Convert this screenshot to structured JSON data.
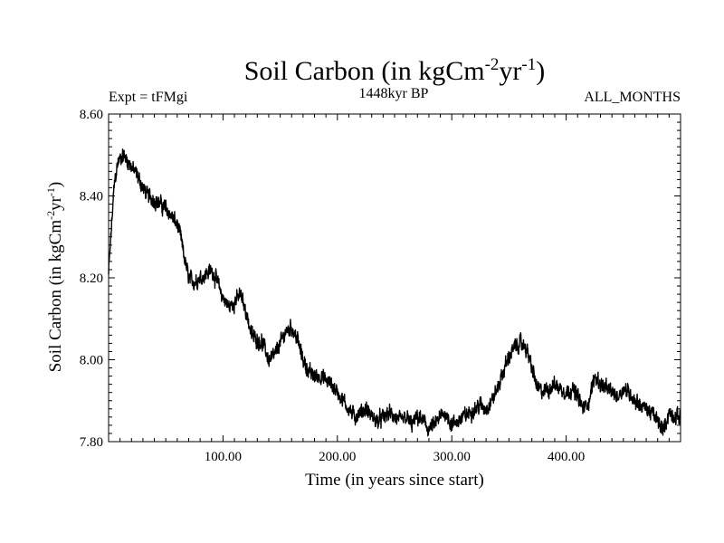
{
  "chart_data": {
    "type": "line",
    "title": "Soil Carbon (in kgCm",
    "title_sup1": "-2",
    "title_mid": "yr",
    "title_sup2": "-1",
    "title_end": ")",
    "subtitle_left": "Expt = tFMgi",
    "subtitle_center": "1448kyr BP",
    "subtitle_right": "ALL_MONTHS",
    "xlabel": "Time (in years since start)",
    "ylabel": "Soil Carbon (in kgCm",
    "ylabel_sup1": "-2",
    "ylabel_mid": "yr",
    "ylabel_sup2": "-1",
    "ylabel_end": ")",
    "xlim": [
      0,
      500
    ],
    "ylim": [
      7.8,
      8.6
    ],
    "x_ticks": [
      {
        "value": 100,
        "label": "100.00"
      },
      {
        "value": 200,
        "label": "200.00"
      },
      {
        "value": 300,
        "label": "300.00"
      },
      {
        "value": 400,
        "label": "400.00"
      }
    ],
    "y_ticks": [
      {
        "value": 7.8,
        "label": "7.80"
      },
      {
        "value": 8.0,
        "label": "8.00"
      },
      {
        "value": 8.2,
        "label": "8.20"
      },
      {
        "value": 8.4,
        "label": "8.40"
      },
      {
        "value": 8.6,
        "label": "8.60"
      }
    ],
    "series": [
      {
        "name": "Soil Carbon",
        "color": "#000000",
        "noise_amplitude": 0.012,
        "x": [
          0,
          2,
          5,
          8,
          12,
          16,
          20,
          25,
          30,
          35,
          40,
          45,
          50,
          55,
          60,
          63,
          66,
          70,
          75,
          80,
          85,
          90,
          95,
          100,
          105,
          110,
          115,
          120,
          125,
          130,
          135,
          140,
          145,
          150,
          155,
          160,
          165,
          170,
          175,
          180,
          185,
          190,
          195,
          200,
          205,
          210,
          215,
          220,
          225,
          230,
          235,
          240,
          245,
          250,
          255,
          260,
          265,
          270,
          275,
          280,
          285,
          290,
          295,
          300,
          305,
          310,
          315,
          320,
          325,
          330,
          335,
          340,
          345,
          350,
          355,
          360,
          365,
          370,
          375,
          380,
          385,
          390,
          395,
          400,
          405,
          410,
          415,
          420,
          425,
          430,
          435,
          440,
          445,
          450,
          455,
          460,
          465,
          470,
          475,
          480,
          485,
          490,
          495,
          500
        ],
        "y": [
          8.21,
          8.3,
          8.43,
          8.48,
          8.5,
          8.49,
          8.47,
          8.45,
          8.42,
          8.4,
          8.39,
          8.38,
          8.37,
          8.35,
          8.33,
          8.3,
          8.25,
          8.2,
          8.19,
          8.2,
          8.21,
          8.22,
          8.19,
          8.15,
          8.13,
          8.14,
          8.16,
          8.12,
          8.06,
          8.05,
          8.04,
          8.0,
          8.01,
          8.04,
          8.07,
          8.08,
          8.05,
          8.0,
          7.97,
          7.96,
          7.96,
          7.95,
          7.94,
          7.92,
          7.9,
          7.88,
          7.86,
          7.87,
          7.88,
          7.86,
          7.85,
          7.86,
          7.87,
          7.86,
          7.85,
          7.86,
          7.84,
          7.86,
          7.85,
          7.83,
          7.84,
          7.86,
          7.87,
          7.84,
          7.85,
          7.86,
          7.87,
          7.88,
          7.89,
          7.88,
          7.9,
          7.93,
          7.97,
          8.01,
          8.03,
          8.04,
          8.03,
          7.98,
          7.93,
          7.92,
          7.93,
          7.94,
          7.93,
          7.92,
          7.93,
          7.91,
          7.88,
          7.9,
          7.96,
          7.94,
          7.93,
          7.92,
          7.91,
          7.93,
          7.92,
          7.9,
          7.89,
          7.88,
          7.87,
          7.85,
          7.83,
          7.87,
          7.86,
          7.86
        ]
      }
    ]
  }
}
